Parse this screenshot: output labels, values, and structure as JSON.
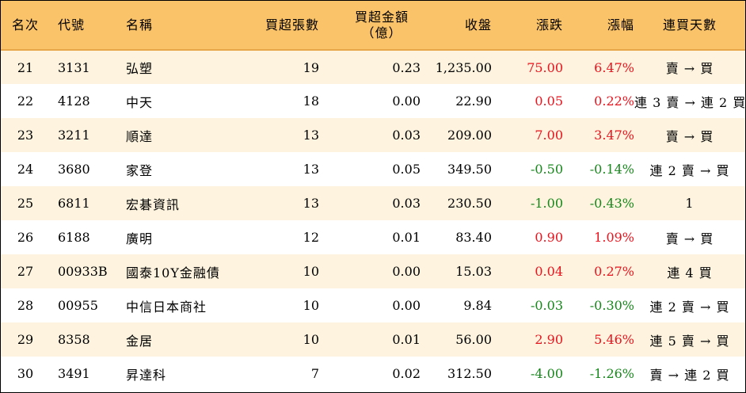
{
  "headers": {
    "rank": "名次",
    "code": "代號",
    "name": "名稱",
    "net_buy_lots": "買超張數",
    "net_buy_amount_line1": "買超金額",
    "net_buy_amount_line2": "（億）",
    "close": "收盤",
    "change": "漲跌",
    "change_pct": "漲幅",
    "consecutive_days": "連買天數"
  },
  "colors": {
    "header_bg": "#fbc369",
    "row_alt_bg": "#fdf3de",
    "up": "#e8141e",
    "down": "#18871c"
  },
  "rows": [
    {
      "rank": "21",
      "code": "3131",
      "name": "弘塑",
      "lots": "19",
      "amount": "0.23",
      "close": "1,235.00",
      "change": "75.00",
      "pct": "6.47%",
      "trend": "up",
      "days": "賣 → 買"
    },
    {
      "rank": "22",
      "code": "4128",
      "name": "中天",
      "lots": "18",
      "amount": "0.00",
      "close": "22.90",
      "change": "0.05",
      "pct": "0.22%",
      "trend": "up",
      "days": "連 3 賣 → 連 2 買"
    },
    {
      "rank": "23",
      "code": "3211",
      "name": "順達",
      "lots": "13",
      "amount": "0.03",
      "close": "209.00",
      "change": "7.00",
      "pct": "3.47%",
      "trend": "up",
      "days": "賣 → 買"
    },
    {
      "rank": "24",
      "code": "3680",
      "name": "家登",
      "lots": "13",
      "amount": "0.05",
      "close": "349.50",
      "change": "-0.50",
      "pct": "-0.14%",
      "trend": "down",
      "days": "連 2 賣 → 買"
    },
    {
      "rank": "25",
      "code": "6811",
      "name": "宏碁資訊",
      "lots": "13",
      "amount": "0.03",
      "close": "230.50",
      "change": "-1.00",
      "pct": "-0.43%",
      "trend": "down",
      "days": "1"
    },
    {
      "rank": "26",
      "code": "6188",
      "name": "廣明",
      "lots": "12",
      "amount": "0.01",
      "close": "83.40",
      "change": "0.90",
      "pct": "1.09%",
      "trend": "up",
      "days": "賣 → 買"
    },
    {
      "rank": "27",
      "code": "00933B",
      "name": "國泰10Y金融債",
      "lots": "10",
      "amount": "0.00",
      "close": "15.03",
      "change": "0.04",
      "pct": "0.27%",
      "trend": "up",
      "days": "連 4 買"
    },
    {
      "rank": "28",
      "code": "00955",
      "name": "中信日本商社",
      "lots": "10",
      "amount": "0.00",
      "close": "9.84",
      "change": "-0.03",
      "pct": "-0.30%",
      "trend": "down",
      "days": "連 2 賣 → 買"
    },
    {
      "rank": "29",
      "code": "8358",
      "name": "金居",
      "lots": "10",
      "amount": "0.01",
      "close": "56.00",
      "change": "2.90",
      "pct": "5.46%",
      "trend": "up",
      "days": "連 5 賣 → 買"
    },
    {
      "rank": "30",
      "code": "3491",
      "name": "昇達科",
      "lots": "7",
      "amount": "0.02",
      "close": "312.50",
      "change": "-4.00",
      "pct": "-1.26%",
      "trend": "down",
      "days": "賣 → 連 2 買"
    }
  ]
}
